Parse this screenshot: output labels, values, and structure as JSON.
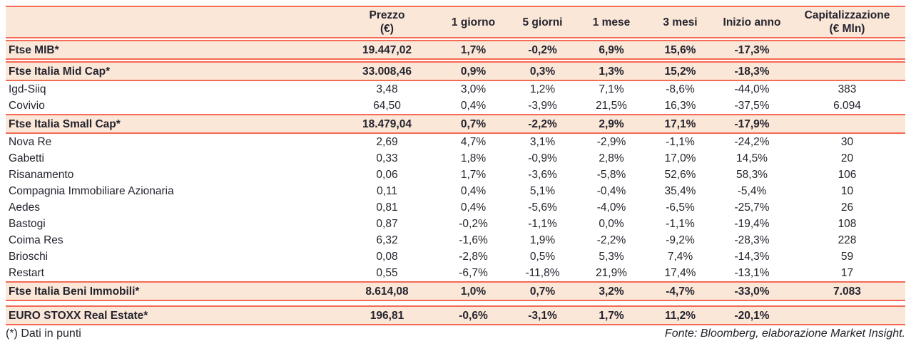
{
  "colors": {
    "accent_border": "#f46a55",
    "band_background": "#fbe7d8",
    "text": "#24242e"
  },
  "table": {
    "columns": [
      {
        "id": "name",
        "label_line1": "",
        "label_line2": ""
      },
      {
        "id": "prezzo",
        "label_line1": "Prezzo",
        "label_line2": "(€)"
      },
      {
        "id": "giorno1",
        "label_line1": "1 giorno",
        "label_line2": ""
      },
      {
        "id": "giorni5",
        "label_line1": "5 giorni",
        "label_line2": ""
      },
      {
        "id": "mese1",
        "label_line1": "1 mese",
        "label_line2": ""
      },
      {
        "id": "mesi3",
        "label_line1": "3 mesi",
        "label_line2": ""
      },
      {
        "id": "inizio-anno",
        "label_line1": "Inizio anno",
        "label_line2": ""
      },
      {
        "id": "capitalizzazione",
        "label_line1": "Capitalizzazione",
        "label_line2": "(€ Mln)"
      }
    ],
    "rows": [
      {
        "name": "Ftse MIB*",
        "style": "band",
        "gap_before": 2,
        "values": [
          "19.447,02",
          "1,7%",
          "-0,2%",
          "6,9%",
          "15,6%",
          "-17,3%",
          ""
        ]
      },
      {
        "name": "Ftse Italia Mid Cap*",
        "style": "band",
        "gap_before": 2,
        "values": [
          "33.008,46",
          "0,9%",
          "0,3%",
          "1,3%",
          "15,2%",
          "-18,3%",
          ""
        ]
      },
      {
        "name": "Igd-Siiq",
        "style": "plain",
        "gap_before": 0,
        "values": [
          "3,48",
          "3,0%",
          "1,2%",
          "7,1%",
          "-8,6%",
          "-44,0%",
          "383"
        ]
      },
      {
        "name": "Covivio",
        "style": "plain",
        "gap_before": 0,
        "values": [
          "64,50",
          "0,4%",
          "-3,9%",
          "21,5%",
          "16,3%",
          "-37,5%",
          "6.094"
        ]
      },
      {
        "name": "Ftse Italia Small Cap*",
        "style": "band",
        "gap_before": 0,
        "values": [
          "18.479,04",
          "0,7%",
          "-2,2%",
          "2,9%",
          "17,1%",
          "-17,9%",
          ""
        ]
      },
      {
        "name": "Nova Re",
        "style": "plain",
        "gap_before": 0,
        "values": [
          "2,69",
          "4,7%",
          "3,1%",
          "-2,9%",
          "-1,1%",
          "-24,2%",
          "30"
        ]
      },
      {
        "name": "Gabetti",
        "style": "plain",
        "gap_before": 0,
        "values": [
          "0,33",
          "1,8%",
          "-0,9%",
          "2,8%",
          "17,0%",
          "14,5%",
          "20"
        ]
      },
      {
        "name": "Risanamento",
        "style": "plain",
        "gap_before": 0,
        "values": [
          "0,06",
          "1,7%",
          "-3,6%",
          "-5,8%",
          "52,6%",
          "58,3%",
          "106"
        ]
      },
      {
        "name": "Compagnia Immobiliare Azionaria",
        "style": "plain",
        "gap_before": 0,
        "values": [
          "0,11",
          "0,4%",
          "5,1%",
          "-0,4%",
          "35,4%",
          "-5,4%",
          "10"
        ]
      },
      {
        "name": "Aedes",
        "style": "plain",
        "gap_before": 0,
        "values": [
          "0,81",
          "0,4%",
          "-5,6%",
          "-4,0%",
          "-6,5%",
          "-25,7%",
          "26"
        ]
      },
      {
        "name": "Bastogi",
        "style": "plain",
        "gap_before": 0,
        "values": [
          "0,87",
          "-0,2%",
          "-1,1%",
          "0,0%",
          "-1,1%",
          "-19,4%",
          "108"
        ]
      },
      {
        "name": "Coima Res",
        "style": "plain",
        "gap_before": 0,
        "values": [
          "6,32",
          "-1,6%",
          "1,9%",
          "-2,2%",
          "-9,2%",
          "-28,3%",
          "228"
        ]
      },
      {
        "name": "Brioschi",
        "style": "plain",
        "gap_before": 0,
        "values": [
          "0,08",
          "-2,8%",
          "0,5%",
          "5,3%",
          "7,4%",
          "-14,3%",
          "59"
        ]
      },
      {
        "name": "Restart",
        "style": "plain",
        "gap_before": 0,
        "values": [
          "0,55",
          "-6,7%",
          "-11,8%",
          "21,9%",
          "17,4%",
          "-13,1%",
          "17"
        ]
      },
      {
        "name": "Ftse Italia Beni Immobili*",
        "style": "band",
        "gap_before": 0,
        "values": [
          "8.614,08",
          "1,0%",
          "0,7%",
          "3,2%",
          "-4,7%",
          "-33,0%",
          "7.083"
        ]
      },
      {
        "name": "EURO STOXX Real Estate*",
        "style": "band",
        "gap_before": 6,
        "values": [
          "196,81",
          "-0,6%",
          "-3,1%",
          "1,7%",
          "11,2%",
          "-20,1%",
          ""
        ]
      }
    ]
  },
  "footer": {
    "note": "(*) Dati in punti",
    "source": "Fonte: Bloomberg, elaborazione Market Insight."
  }
}
